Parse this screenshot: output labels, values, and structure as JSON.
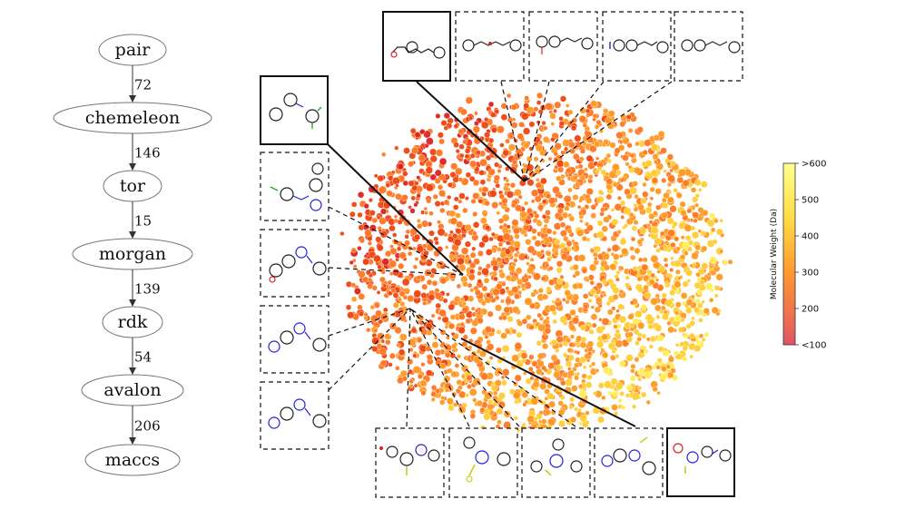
{
  "flow": {
    "nodes": [
      "pair",
      "chemeleon",
      "tor",
      "morgan",
      "rdk",
      "avalon",
      "maccs"
    ],
    "edges": [
      {
        "from": "pair",
        "to": "chemeleon",
        "label": "72"
      },
      {
        "from": "chemeleon",
        "to": "tor",
        "label": "146"
      },
      {
        "from": "tor",
        "to": "morgan",
        "label": "15"
      },
      {
        "from": "morgan",
        "to": "rdk",
        "label": "139"
      },
      {
        "from": "rdk",
        "to": "avalon",
        "label": "54"
      },
      {
        "from": "avalon",
        "to": "maccs",
        "label": "206"
      }
    ]
  },
  "colorbar": {
    "title": "Molecular Weight (Da)",
    "ticks": [
      ">600",
      "500",
      "400",
      "300",
      "200",
      "<100"
    ],
    "colors": [
      "#ffff80",
      "#ffcc33",
      "#ff9922",
      "#ee4444",
      "#e06070"
    ]
  },
  "scatter": {
    "palette": [
      "#ffee55",
      "#ffcc33",
      "#ff9922",
      "#ff7722",
      "#ee4411",
      "#dd2222"
    ]
  },
  "thumbnails": {
    "top_solid": "structure-thumbnail",
    "left_solid": "structure-thumbnail",
    "bottom_solid": "structure-thumbnail"
  }
}
